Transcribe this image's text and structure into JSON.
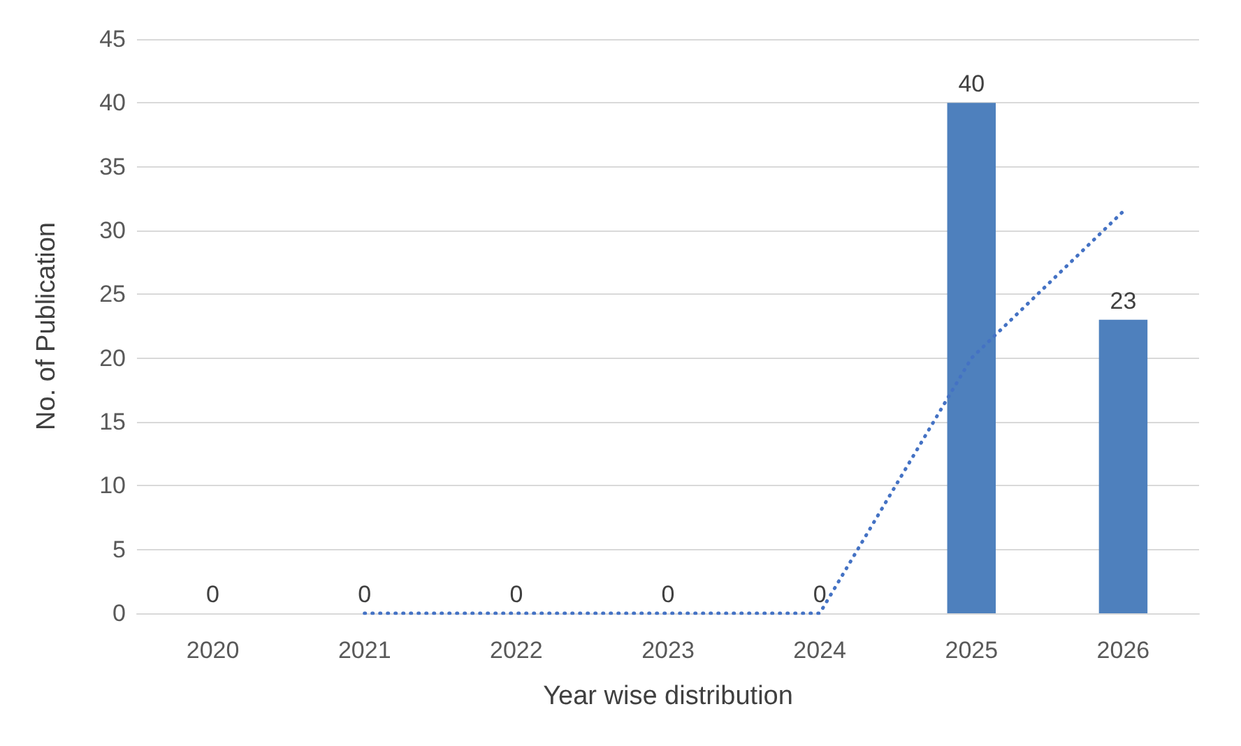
{
  "chart_data": {
    "type": "bar",
    "xlabel": "Year wise distribution",
    "ylabel": "No. of Publication",
    "categories": [
      "2020",
      "2021",
      "2022",
      "2023",
      "2024",
      "2025",
      "2026"
    ],
    "series": [
      {
        "color": "#4e80bd",
        "values": [
          0,
          0,
          0,
          0,
          0,
          40,
          23
        ],
        "value_labels": [
          "0",
          "0",
          "0",
          "0",
          "0",
          "40",
          "23"
        ]
      },
      {
        "type": "line",
        "color": "#4472c4",
        "line_style": "dotted",
        "marker": "none",
        "values": [
          null,
          0,
          0,
          0,
          0,
          20,
          31.5
        ]
      }
    ],
    "ylim": [
      0,
      45
    ],
    "yticks": [
      0,
      5,
      10,
      15,
      20,
      25,
      30,
      35,
      40,
      45
    ],
    "grid": "y"
  }
}
